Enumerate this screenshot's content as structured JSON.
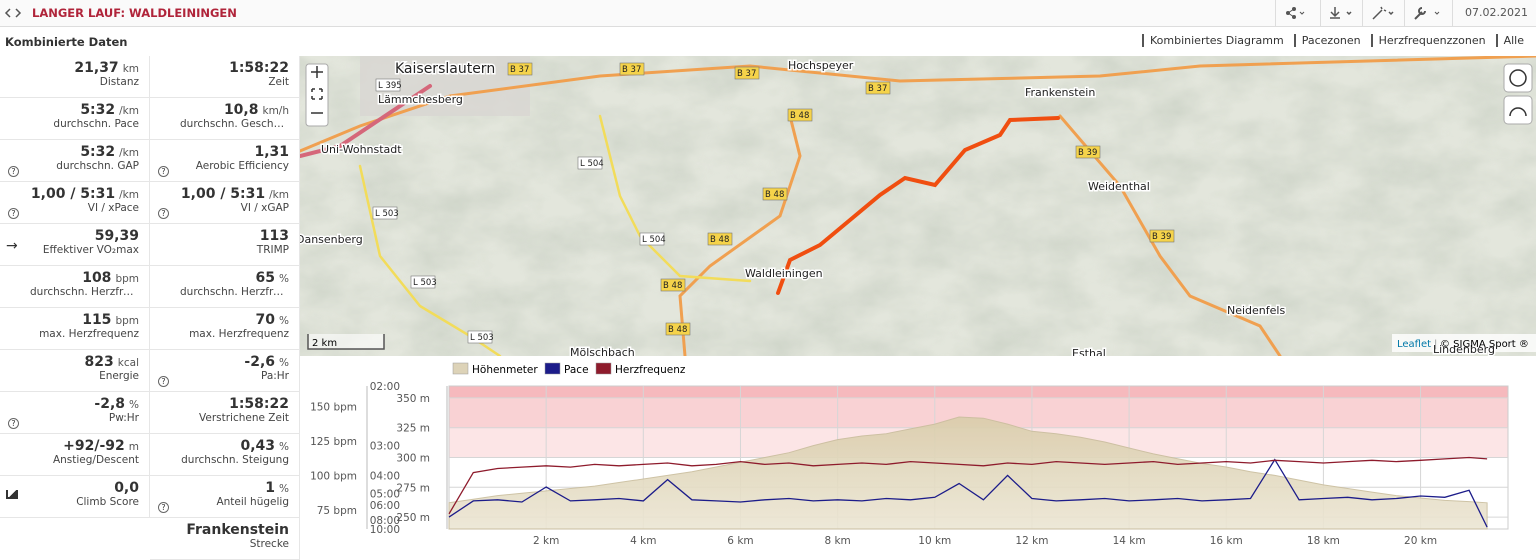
{
  "header": {
    "title": "LANGER LAUF: WALDLEININGEN",
    "date": "07.02.2021"
  },
  "panel": {
    "title": "Kombinierte Daten",
    "stats": [
      [
        {
          "value": "21,37",
          "unit": "km",
          "label": "Distanz"
        },
        {
          "value": "1:58:22",
          "label": "Zeit"
        }
      ],
      [
        {
          "value": "5:32",
          "unit": "/km",
          "label": "durchschn. Pace"
        },
        {
          "value": "10,8",
          "unit": "km/h",
          "label": "durchschn. Geschwindigkeit"
        }
      ],
      [
        {
          "value": "5:32",
          "unit": "/km",
          "label": "durchschn. GAP",
          "info": true
        },
        {
          "value": "1,31",
          "label": "Aerobic Efficiency",
          "info": true
        }
      ],
      [
        {
          "value": "1,00 / 5:31",
          "unit": "/km",
          "label": "VI / xPace",
          "info": true
        },
        {
          "value": "1,00 / 5:31",
          "unit": "/km",
          "label": "VI / xGAP",
          "info": true
        }
      ],
      [
        {
          "value": "59,39",
          "label": "Effektiver VO₂max",
          "icon": "arrow"
        },
        {
          "value": "113",
          "label": "TRIMP"
        }
      ],
      [
        {
          "value": "108",
          "unit": "bpm",
          "label": "durchschn. Herzfrequenz"
        },
        {
          "value": "65",
          "unit": "%",
          "label": "durchschn. Herzfrequenz"
        }
      ],
      [
        {
          "value": "115",
          "unit": "bpm",
          "label": "max. Herzfrequenz"
        },
        {
          "value": "70",
          "unit": "%",
          "label": "max. Herzfrequenz"
        }
      ],
      [
        {
          "value": "823",
          "unit": "kcal",
          "label": "Energie"
        },
        {
          "value": "-2,6",
          "unit": "%",
          "label": "Pa:Hr",
          "info": true
        }
      ],
      [
        {
          "value": "-2,8",
          "unit": "%",
          "label": "Pw:Hr",
          "info": true
        },
        {
          "value": "1:58:22",
          "label": "Verstrichene Zeit"
        }
      ],
      [
        {
          "value": "+92/-92",
          "unit": "m",
          "label": "Anstieg/Descent"
        },
        {
          "value": "0,43",
          "unit": "%",
          "label": "durchschn. Steigung"
        }
      ],
      [
        {
          "value": "0,0",
          "label": "Climb Score",
          "icon": "chart"
        },
        {
          "value": "1",
          "unit": "%",
          "label": "Anteil hügelig",
          "info": true
        }
      ]
    ],
    "route": {
      "value": "Frankenstein",
      "label": "Strecke"
    }
  },
  "tabs": [
    "Kombiniertes Diagramm",
    "Pacezonen",
    "Herzfrequenzzonen",
    "Alle"
  ],
  "map": {
    "places": [
      "Kaiserslautern",
      "Hochspeyer",
      "Frankenstein",
      "Lämmchesberg",
      "Uni-Wohnstadt",
      "Weidenthal",
      "Waldleiningen",
      "Neidenfels",
      "Dansenberg",
      "Mölschbach",
      "Esthal",
      "Lindenberg"
    ],
    "roads": [
      "B 37",
      "B 37",
      "B 37",
      "B 37",
      "B 48",
      "B 48",
      "B 48",
      "B 48",
      "B 48",
      "B 39",
      "B 39",
      "L 504",
      "L 504",
      "L 503",
      "L 503",
      "L 503",
      "L 395"
    ],
    "scale": "2 km",
    "credits": [
      "Leaflet",
      "© SIGMA Sport ®"
    ]
  },
  "chart_data": {
    "type": "line",
    "x": [
      0,
      0.5,
      1,
      1.5,
      2,
      2.5,
      3,
      3.5,
      4,
      4.5,
      5,
      5.5,
      6,
      6.5,
      7,
      7.5,
      8,
      8.5,
      9,
      9.5,
      10,
      10.5,
      11,
      11.5,
      12,
      12.5,
      13,
      13.5,
      14,
      14.5,
      15,
      15.5,
      16,
      16.5,
      17,
      17.5,
      18,
      18.5,
      19,
      19.5,
      20,
      20.5,
      21,
      21.37
    ],
    "xlim": [
      0,
      21.8
    ],
    "xticks": [
      {
        "value": 2,
        "label": "2 km"
      },
      {
        "value": 4,
        "label": "4 km"
      },
      {
        "value": 6,
        "label": "6 km"
      },
      {
        "value": 8,
        "label": "8 km"
      },
      {
        "value": 10,
        "label": "10 km"
      },
      {
        "value": 12,
        "label": "12 km"
      },
      {
        "value": 14,
        "label": "14 km"
      },
      {
        "value": 16,
        "label": "16 km"
      },
      {
        "value": 18,
        "label": "18 km"
      },
      {
        "value": 20,
        "label": "20 km"
      }
    ],
    "ylim": [
      240,
      360
    ],
    "yticks": [
      {
        "value": 250,
        "label": "250 m"
      },
      {
        "value": 275,
        "label": "275 m"
      },
      {
        "value": 300,
        "label": "300 m"
      },
      {
        "value": 325,
        "label": "325 m"
      },
      {
        "value": 350,
        "label": "350 m"
      }
    ],
    "y2lim": [
      10,
      2
    ],
    "y2scale": "reciprocal",
    "y2ticks": [
      {
        "value": 2,
        "label": "02:00"
      },
      {
        "value": 3,
        "label": "03:00"
      },
      {
        "value": 4,
        "label": "04:00"
      },
      {
        "value": 5,
        "label": "05:00"
      },
      {
        "value": 6,
        "label": "06:00"
      },
      {
        "value": 8,
        "label": "08:00"
      },
      {
        "value": 10,
        "label": "10:00"
      }
    ],
    "y3lim": [
      61,
      165
    ],
    "y3ticks": [
      {
        "value": 75,
        "label": "75 bpm"
      },
      {
        "value": 100,
        "label": "100 bpm"
      },
      {
        "value": 125,
        "label": "125 bpm"
      },
      {
        "value": 150,
        "label": "150 bpm"
      }
    ],
    "grid": true,
    "series": [
      {
        "name": "Höhenmeter",
        "color": "#ddd3b8",
        "area": true,
        "axis": "y",
        "values": [
          262,
          265,
          268,
          270,
          272,
          274,
          276,
          279,
          282,
          285,
          288,
          292,
          296,
          300,
          304,
          310,
          315,
          318,
          320,
          324,
          328,
          334,
          333,
          328,
          322,
          320,
          317,
          313,
          308,
          303,
          299,
          295,
          292,
          288,
          285,
          281,
          277,
          274,
          271,
          268,
          266,
          264,
          263,
          262
        ]
      },
      {
        "name": "Pace",
        "color": "#1c1c8a",
        "axis": "y2",
        "values": [
          7.5,
          5.6,
          5.5,
          5.7,
          4.6,
          5.6,
          5.5,
          5.4,
          5.6,
          4.2,
          5.5,
          5.6,
          5.7,
          5.5,
          5.4,
          5.6,
          5.5,
          5.6,
          5.4,
          5.5,
          5.3,
          4.4,
          5.5,
          4.0,
          5.4,
          5.6,
          5.5,
          5.4,
          5.6,
          5.5,
          5.4,
          5.6,
          5.5,
          5.4,
          3.4,
          5.5,
          5.4,
          5.3,
          5.5,
          5.4,
          5.2,
          5.3,
          4.8,
          9.5
        ]
      },
      {
        "name": "Herzfrequenz",
        "color": "#8e1b2c",
        "axis": "y3",
        "values": [
          72,
          102,
          105,
          106,
          107,
          106,
          108,
          107,
          108,
          109,
          107,
          108,
          110,
          108,
          109,
          107,
          108,
          109,
          108,
          110,
          109,
          108,
          107,
          109,
          108,
          110,
          109,
          108,
          109,
          110,
          108,
          109,
          110,
          109,
          111,
          110,
          109,
          110,
          111,
          110,
          111,
          112,
          113,
          112
        ]
      }
    ]
  }
}
